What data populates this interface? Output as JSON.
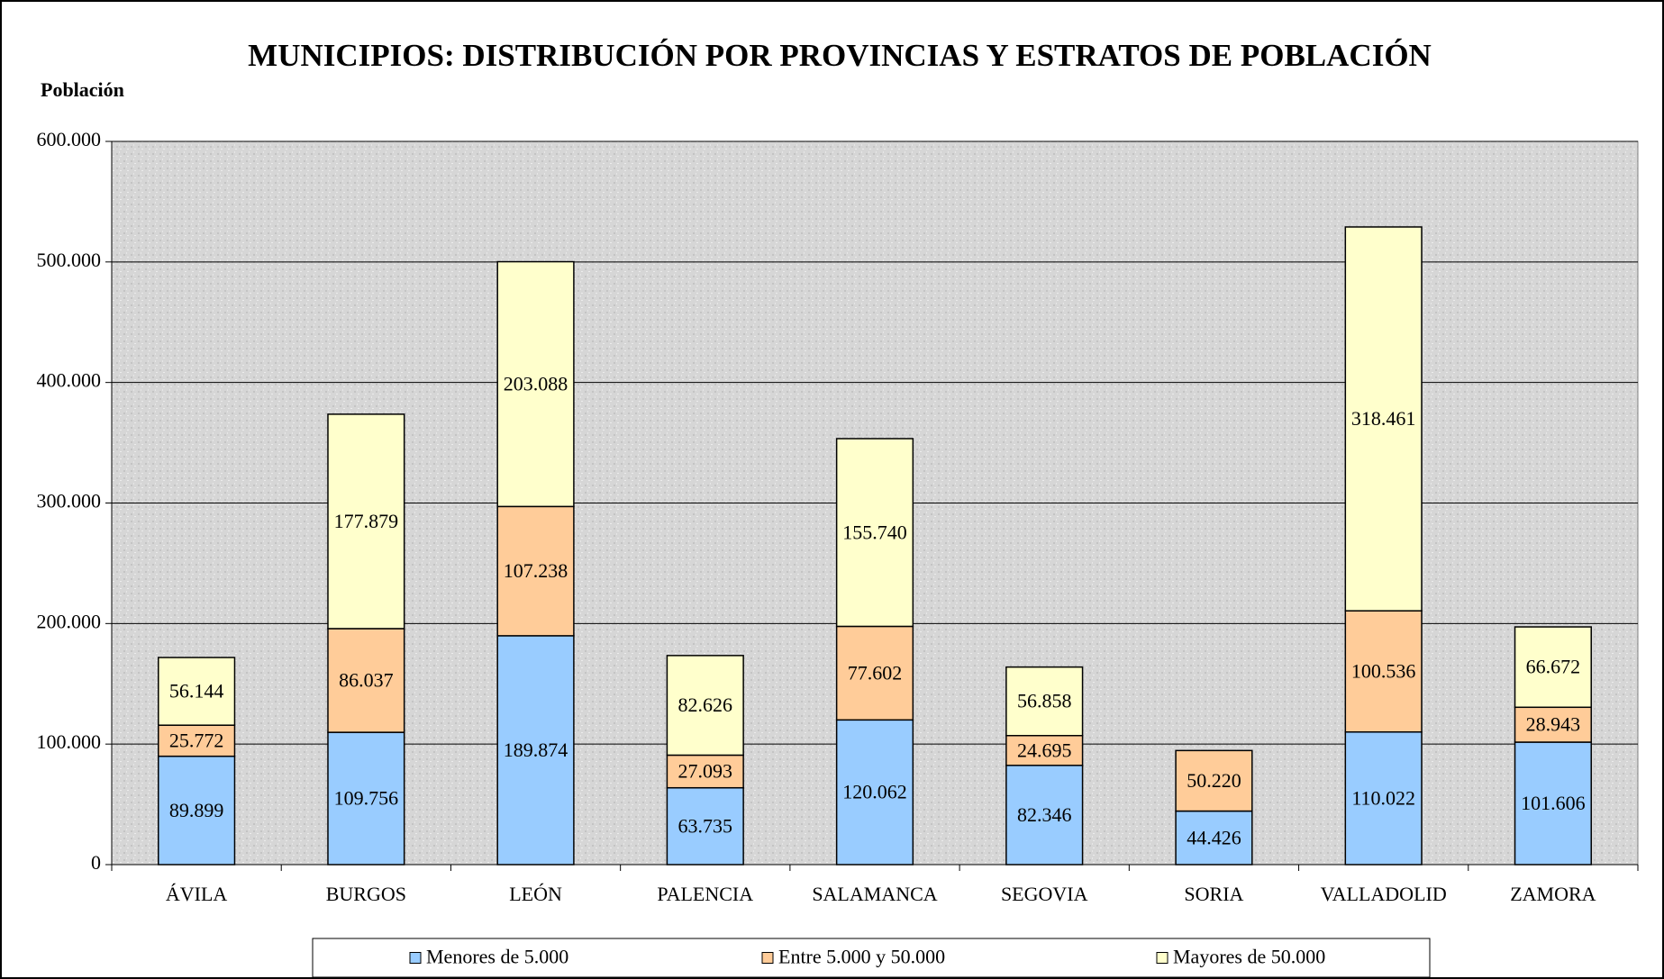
{
  "chart_data": {
    "type": "stacked_bar",
    "title": "MUNICIPIOS: DISTRIBUCIÓN POR PROVINCIAS Y ESTRATOS DE POBLACIÓN",
    "y_label": "Población",
    "categories": [
      "ÁVILA",
      "BURGOS",
      "LEÓN",
      "PALENCIA",
      "SALAMANCA",
      "SEGOVIA",
      "SORIA",
      "VALLADOLID",
      "ZAMORA"
    ],
    "series": [
      {
        "name": "Menores de 5.000",
        "color": "#99ccff",
        "values": [
          89899,
          109756,
          189874,
          63735,
          120062,
          82346,
          44426,
          110022,
          101606
        ],
        "value_labels": [
          "89.899",
          "109.756",
          "189.874",
          "63.735",
          "120.062",
          "82.346",
          "44.426",
          "110.022",
          "101.606"
        ]
      },
      {
        "name": "Entre 5.000 y 50.000",
        "color": "#ffcc99",
        "values": [
          25772,
          86037,
          107238,
          27093,
          77602,
          24695,
          50220,
          100536,
          28943
        ],
        "value_labels": [
          "25.772",
          "86.037",
          "107.238",
          "27.093",
          "77.602",
          "24.695",
          "50.220",
          "100.536",
          "28.943"
        ]
      },
      {
        "name": "Mayores de 50.000",
        "color": "#ffffcc",
        "values": [
          56144,
          177879,
          203088,
          82626,
          155740,
          56858,
          null,
          318461,
          66672
        ],
        "value_labels": [
          "56.144",
          "177.879",
          "203.088",
          "82.626",
          "155.740",
          "56.858",
          null,
          "318.461",
          "66.672"
        ]
      }
    ],
    "ylim": [
      0,
      600000
    ],
    "yticks": [
      0,
      {
        "value": 100000,
        "label": "100.000"
      },
      {
        "value": 200000,
        "label": "200.000"
      },
      {
        "value": 300000,
        "label": "300.000"
      },
      {
        "value": 400000,
        "label": "400.000"
      },
      {
        "value": 500000,
        "label": "500.000"
      },
      {
        "value": 600000,
        "label": "600.000"
      }
    ],
    "grid": true,
    "legend": "bottom"
  }
}
